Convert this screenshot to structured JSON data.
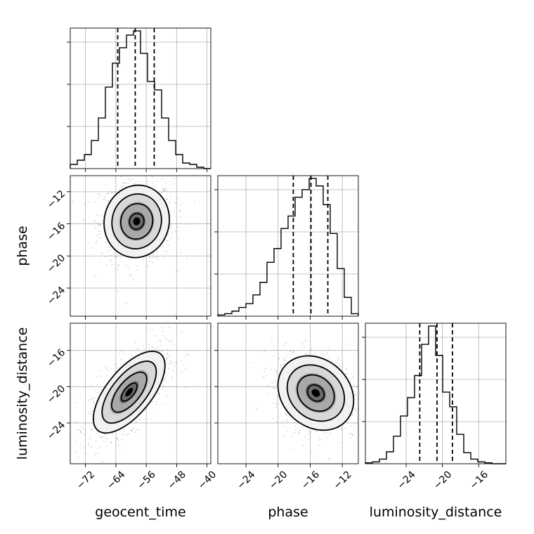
{
  "chart_data": {
    "type": "corner",
    "parameters": [
      "geocent_time",
      "phase",
      "luminosity_distance"
    ],
    "axes": {
      "geocent_time": {
        "label": "geocent_time",
        "range": [
          -76,
          -39
        ],
        "ticks": [
          -72,
          -64,
          -56,
          -48,
          -40
        ],
        "tick_labels": [
          "−72",
          "−64",
          "−56",
          "−48",
          "−40"
        ]
      },
      "phase": {
        "label": "phase",
        "range": [
          -27.5,
          -10.0
        ],
        "ticks": [
          -24,
          -20,
          -16,
          -12
        ],
        "tick_labels": [
          "−24",
          "−20",
          "−16",
          "−12"
        ]
      },
      "luminosity_distance": {
        "label": "luminosity_distance",
        "range": [
          -28.5,
          -13.0
        ],
        "ticks": [
          -24,
          -20,
          -16
        ],
        "tick_labels": [
          "−24",
          "−20",
          "−16"
        ]
      }
    },
    "histograms": {
      "geocent_time": {
        "bin_edges": [
          -76.0,
          -74.15,
          -72.3,
          -70.45,
          -68.6,
          -66.75,
          -64.9,
          -63.05,
          -61.2,
          -59.35,
          -57.5,
          -55.65,
          -53.8,
          -51.95,
          -50.1,
          -48.25,
          -46.4,
          -44.55,
          -42.7,
          -40.85,
          -39.0
        ],
        "counts": [
          3,
          6,
          10,
          20,
          36,
          58,
          75,
          86,
          95,
          98,
          82,
          62,
          56,
          36,
          20,
          10,
          4,
          3,
          1,
          0
        ],
        "quantiles": [
          -63.5,
          -58.9,
          -53.9
        ]
      },
      "phase": {
        "bin_edges": [
          -27.5,
          -26.625,
          -25.75,
          -24.875,
          -24.0,
          -23.125,
          -22.25,
          -21.375,
          -20.5,
          -19.625,
          -18.75,
          -17.875,
          -17.0,
          -16.125,
          -15.25,
          -14.375,
          -13.5,
          -12.625,
          -11.75,
          -10.875,
          -10.0
        ],
        "counts": [
          1,
          2,
          4,
          7,
          10,
          17,
          27,
          43,
          54,
          70,
          80,
          95,
          101,
          110,
          104,
          89,
          66,
          38,
          15,
          2
        ],
        "quantiles": [
          -18.1,
          -15.9,
          -13.8
        ]
      },
      "luminosity_distance": {
        "bin_edges": [
          -28.5,
          -27.725,
          -26.95,
          -26.175,
          -25.4,
          -24.625,
          -23.85,
          -23.075,
          -22.3,
          -21.525,
          -20.75,
          -19.975,
          -19.2,
          -18.425,
          -17.65,
          -16.875,
          -16.1,
          -15.325,
          -14.55,
          -13.775,
          -13.0
        ],
        "counts": [
          1,
          2,
          5,
          13,
          30,
          52,
          72,
          96,
          130,
          150,
          118,
          78,
          62,
          32,
          12,
          5,
          2,
          1,
          0,
          0
        ],
        "quantiles": [
          -22.5,
          -20.6,
          -18.9
        ]
      }
    },
    "pairs": [
      {
        "x": "geocent_time",
        "y": "phase",
        "center": [
          -58.5,
          -15.7
        ],
        "sigma": [
          4.2,
          2.2
        ],
        "correlation": 0.05
      },
      {
        "x": "geocent_time",
        "y": "luminosity_distance",
        "center": [
          -60.5,
          -20.6
        ],
        "sigma": [
          4.6,
          2.2
        ],
        "correlation": 0.65
      },
      {
        "x": "phase",
        "y": "luminosity_distance",
        "center": [
          -15.3,
          -20.7
        ],
        "sigma": [
          2.3,
          2.0
        ],
        "correlation": -0.2
      }
    ],
    "grid": true,
    "colors": {
      "line": "#000000",
      "grid": "#b0b0b0",
      "points": "#9a9a9a"
    }
  }
}
